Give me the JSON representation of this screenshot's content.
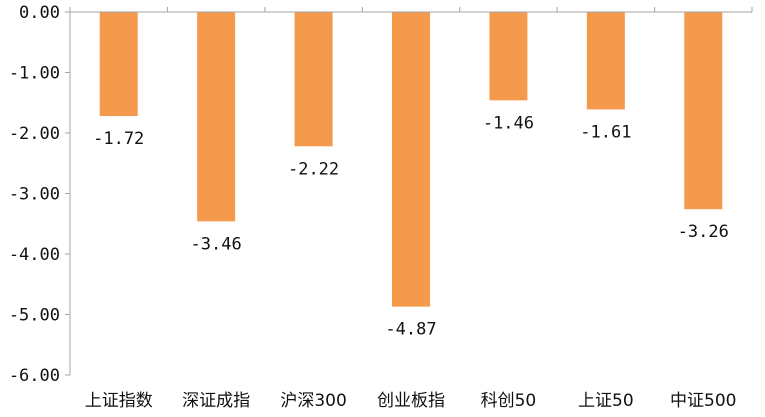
{
  "chart_data": {
    "type": "bar",
    "title": "",
    "xlabel": "",
    "ylabel": "",
    "categories": [
      "上证指数",
      "深证成指",
      "沪深300",
      "创业板指",
      "科创50",
      "上证50",
      "中证500"
    ],
    "values": [
      -1.72,
      -3.46,
      -2.22,
      -4.87,
      -1.46,
      -1.61,
      -3.26
    ],
    "value_labels": [
      "-1.72",
      "-3.46",
      "-2.22",
      "-4.87",
      "-1.46",
      "-1.61",
      "-3.26"
    ],
    "ylim": [
      -6,
      0
    ],
    "y_ticks": [
      0,
      -1,
      -2,
      -3,
      -4,
      -5,
      -6
    ],
    "y_tick_labels": [
      "0.00",
      "-1.00",
      "-2.00",
      "-3.00",
      "-4.00",
      "-5.00",
      "-6.00"
    ],
    "bar_color": "#F59A4D",
    "axis_color": "#A6A6A6",
    "grid": false,
    "legend": "none"
  }
}
